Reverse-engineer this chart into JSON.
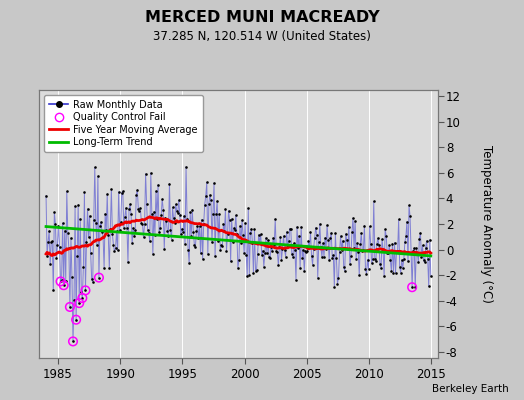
{
  "title": "MERCED MUNI MACREADY",
  "subtitle": "37.285 N, 120.514 W (United States)",
  "ylabel": "Temperature Anomaly (°C)",
  "attribution": "Berkeley Earth",
  "ylim": [
    -8.5,
    12.5
  ],
  "yticks": [
    -8,
    -6,
    -4,
    -2,
    0,
    2,
    4,
    6,
    8,
    10,
    12
  ],
  "xlim": [
    1983.5,
    2015.5
  ],
  "xticks": [
    1985,
    1990,
    1995,
    2000,
    2005,
    2010,
    2015
  ],
  "bg_color": "#c8c8c8",
  "plot_bg_color": "#dcdcdc",
  "grid_color": "#ffffff",
  "line_color_raw": "#3333cc",
  "line_color_ma": "#ee0000",
  "line_color_trend": "#00bb00",
  "dot_color": "#000000",
  "qc_color": "#ff00ff",
  "raw_alpha": 0.55,
  "seed": 7
}
